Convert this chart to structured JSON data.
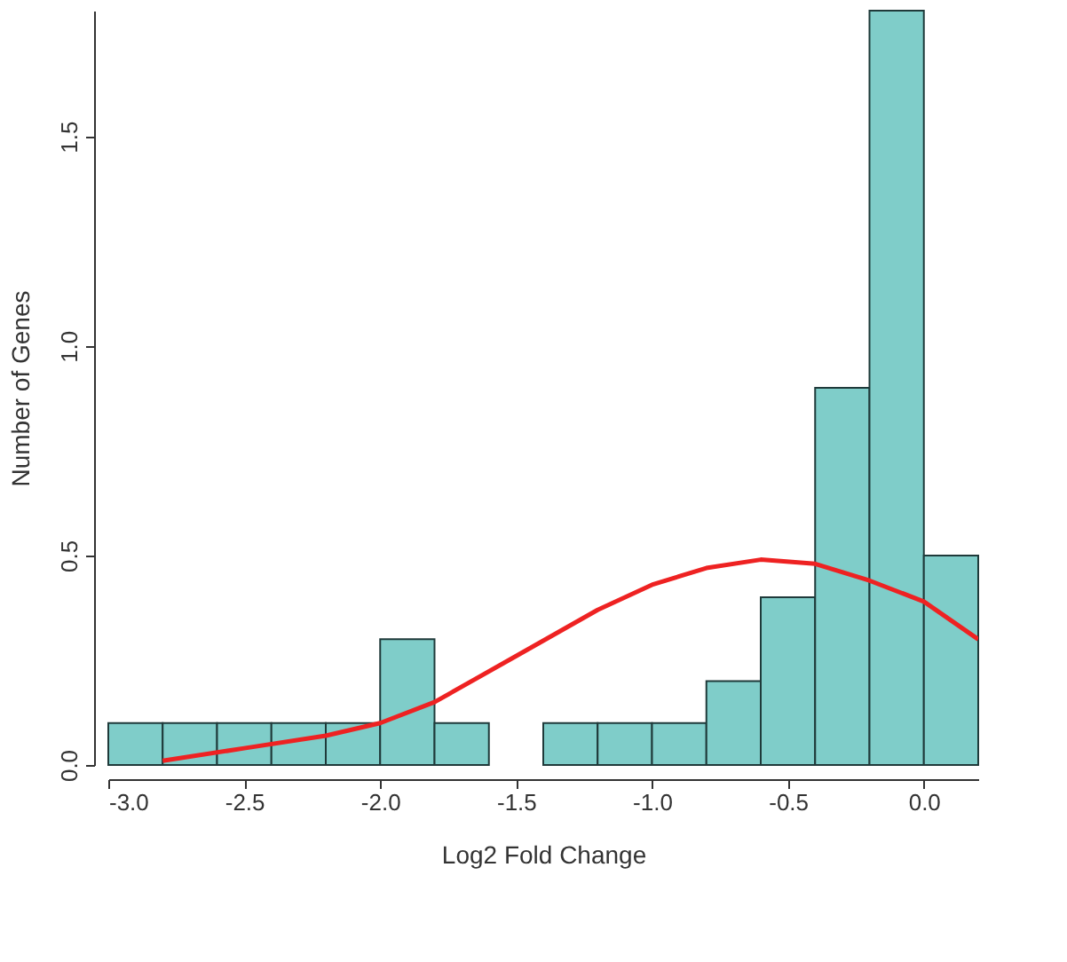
{
  "chart_data": {
    "type": "histogram",
    "xlabel": "Log2 Fold Change",
    "ylabel": "Number of Genes",
    "bins": [
      -3.0,
      -2.8,
      -2.6,
      -2.4,
      -2.2,
      -2.0,
      -1.8,
      -1.6,
      -1.4,
      -1.2,
      -1.0,
      -0.8,
      -0.6,
      -0.4,
      -0.2,
      0.0,
      0.2
    ],
    "values": [
      0.1,
      0.1,
      0.1,
      0.1,
      0.1,
      0.3,
      0.1,
      0,
      0.1,
      0.1,
      0.1,
      0.2,
      0.4,
      0.9,
      1.8,
      0.5
    ],
    "color": "#7fcdc9",
    "series": [
      {
        "type": "line",
        "color": "#ee2222",
        "x": [
          -2.8,
          -2.5,
          -2.2,
          -2.0,
          -1.8,
          -1.5,
          -1.2,
          -1.0,
          -0.8,
          -0.6,
          -0.4,
          -0.2,
          0.0,
          0.2
        ],
        "values": [
          0.01,
          0.04,
          0.07,
          0.1,
          0.15,
          0.26,
          0.37,
          0.43,
          0.47,
          0.49,
          0.48,
          0.44,
          0.39,
          0.3
        ]
      }
    ],
    "xlim": [
      -3.0,
      0.2
    ],
    "ylim": [
      0,
      1.8
    ],
    "xticks": [
      {
        "value": -3.0,
        "label": "-3.0"
      },
      {
        "value": -2.5,
        "label": "-2.5"
      },
      {
        "value": -2.0,
        "label": "-2.0"
      },
      {
        "value": -1.5,
        "label": "-1.5"
      },
      {
        "value": -1.0,
        "label": "-1.0"
      },
      {
        "value": -0.5,
        "label": "-0.5"
      },
      {
        "value": 0.0,
        "label": "0.0"
      }
    ],
    "yticks": [
      {
        "value": 0.0,
        "label": "0.0"
      },
      {
        "value": 0.5,
        "label": "0.5"
      },
      {
        "value": 1.0,
        "label": "1.0"
      },
      {
        "value": 1.5,
        "label": "1.5"
      }
    ],
    "grid": false
  }
}
